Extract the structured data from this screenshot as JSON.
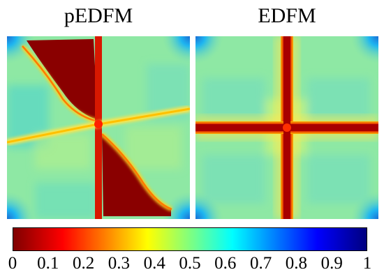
{
  "panels": {
    "left": {
      "title": "pEDFM"
    },
    "right": {
      "title": "EDFM"
    }
  },
  "colorbar": {
    "colormap": "jet-reversed",
    "range": [
      0,
      1
    ],
    "tick_labels": [
      "0",
      "0.1",
      "0.2",
      "0.3",
      "0.4",
      "0.5",
      "0.6",
      "0.7",
      "0.8",
      "0.9",
      "1"
    ],
    "colors": {
      "low": "#7f0000",
      "red": "#ff0000",
      "yellow": "#ffff00",
      "cyan": "#00ffff",
      "blue": "#0000ff",
      "high": "#00007f"
    }
  }
}
